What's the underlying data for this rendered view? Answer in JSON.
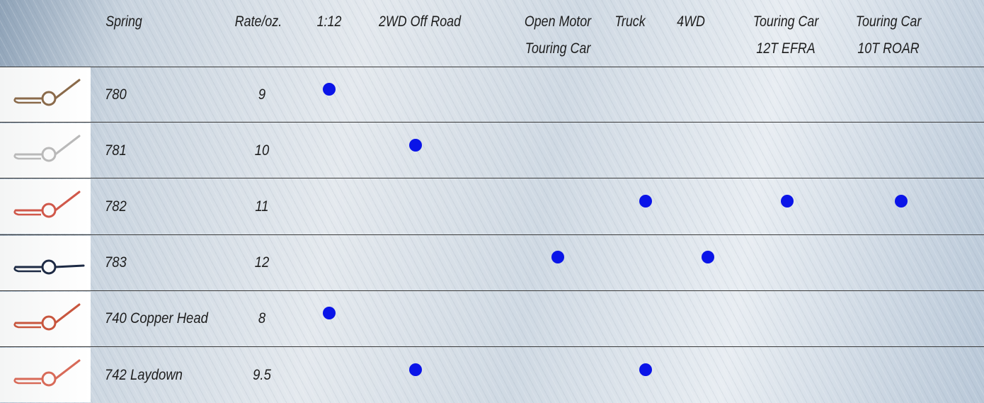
{
  "table": {
    "header": [
      "Spring",
      "Rate/oz.",
      "1:12",
      "2WD Off Road",
      "Open Motor\nTouring Car",
      "Truck",
      "4WD",
      "Touring Car\n12T EFRA",
      "Touring Car\n10T ROAR"
    ],
    "rows": [
      {
        "spring": "780",
        "rate": 9,
        "uses": [
          true,
          false,
          false,
          false,
          false,
          false,
          false
        ]
      },
      {
        "spring": "781",
        "rate": 10,
        "uses": [
          false,
          true,
          false,
          false,
          false,
          false,
          false
        ]
      },
      {
        "spring": "782",
        "rate": 11,
        "uses": [
          false,
          false,
          false,
          true,
          false,
          true,
          true
        ]
      },
      {
        "spring": "783",
        "rate": 12,
        "uses": [
          false,
          false,
          true,
          false,
          true,
          false,
          false
        ]
      },
      {
        "spring": "740 Copper Head",
        "rate": 8,
        "uses": [
          true,
          false,
          false,
          false,
          false,
          false,
          false
        ]
      },
      {
        "spring": "742 Laydown",
        "rate": 9.5,
        "uses": [
          false,
          true,
          false,
          true,
          false,
          false,
          false
        ]
      }
    ]
  }
}
